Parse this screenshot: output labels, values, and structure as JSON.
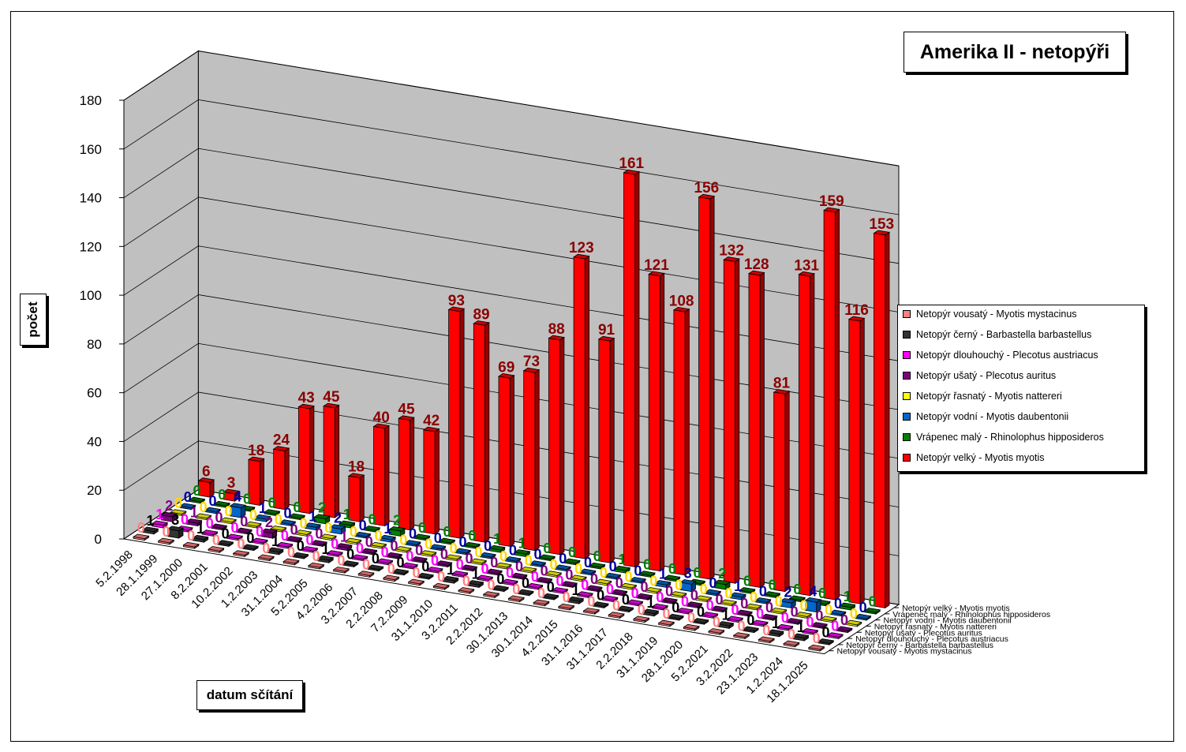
{
  "title": "Amerika II - netopýři",
  "chart_data": {
    "type": "bar",
    "title": "Amerika II - netopýři",
    "xlabel": "datum sčítání",
    "ylabel": "počet",
    "ylim": [
      0,
      180
    ],
    "yticks": [
      "0",
      "20",
      "40",
      "60",
      "80",
      "100",
      "120",
      "140",
      "160",
      "180"
    ],
    "grid": true,
    "legend_position": "right",
    "categories": [
      "5.2.1998",
      "28.1.1999",
      "27.1.2000",
      "8.2.2001",
      "10.2.2002",
      "1.2.2003",
      "31.1.2004",
      "5.2.2005",
      "4.2.2006",
      "3.2.2007",
      "2.2.2008",
      "7.2.2009",
      "31.1.2010",
      "3.2.2011",
      "2.2.2012",
      "30.1.2013",
      "30.1.2014",
      "4.2.2015",
      "31.1.2016",
      "31.1.2017",
      "2.2.2018",
      "31.1.2019",
      "28.1.2020",
      "5.2.2021",
      "3.2.2022",
      "23.1.2023",
      "1.2.2024",
      "18.1.2025"
    ],
    "series": [
      {
        "name": "Netopýr vousatý - Myotis mystacinus",
        "color": "#FF8080",
        "values": [
          0,
          0,
          0,
          0,
          0,
          0,
          0,
          0,
          0,
          0,
          0,
          0,
          0,
          0,
          0,
          0,
          0,
          0,
          0,
          0,
          0,
          0,
          0,
          0,
          0,
          0,
          0,
          0
        ]
      },
      {
        "name": "Netopýr černý - Barbastella barbastellus",
        "color": "#333333",
        "values": [
          1,
          3,
          1,
          0,
          0,
          1,
          0,
          1,
          0,
          0,
          0,
          0,
          1,
          1,
          0,
          0,
          0,
          1,
          0,
          0,
          1,
          0,
          0,
          1,
          0,
          1,
          1,
          0
        ]
      },
      {
        "name": "Netopýr dlouhouchý - Plecotus austriacus",
        "color": "#FF00FF",
        "values": [
          1,
          0,
          0,
          0,
          0,
          0,
          0,
          0,
          0,
          0,
          0,
          0,
          0,
          0,
          0,
          0,
          0,
          0,
          0,
          0,
          0,
          0,
          0,
          0,
          0,
          0,
          0,
          0
        ]
      },
      {
        "name": "Netopýr ušatý - Plecotus auritus",
        "color": "#800080",
        "values": [
          2,
          1,
          0,
          0,
          2,
          0,
          0,
          1,
          0,
          0,
          0,
          0,
          0,
          0,
          0,
          0,
          0,
          0,
          0,
          0,
          0,
          0,
          0,
          0,
          0,
          0,
          0,
          0
        ]
      },
      {
        "name": "Netopýr řasnatý - Myotis nattereri",
        "color": "#FFFF00",
        "values": [
          0,
          0,
          0,
          0,
          0,
          0,
          0,
          0,
          0,
          0,
          0,
          0,
          0,
          0,
          0,
          0,
          0,
          0,
          0,
          0,
          0,
          0,
          0,
          0,
          0,
          0,
          0,
          0
        ]
      },
      {
        "name": "Netopýr vodní - Myotis daubentonii",
        "color": "#0066CC",
        "values": [
          0,
          0,
          4,
          1,
          0,
          1,
          2,
          0,
          1,
          0,
          0,
          0,
          0,
          0,
          0,
          0,
          0,
          0,
          0,
          1,
          3,
          0,
          1,
          0,
          2,
          4,
          0,
          0
        ]
      },
      {
        "name": "Vrápenec malý - Rhinolophus hipposideros",
        "color": "#008000",
        "values": [
          0,
          0,
          0,
          0,
          0,
          2,
          1,
          0,
          2,
          0,
          0,
          0,
          1,
          1,
          0,
          0,
          0,
          1,
          0,
          0,
          0,
          2,
          0,
          0,
          0,
          0,
          1,
          0
        ]
      },
      {
        "name": "Netopýr velký - Myotis myotis",
        "color": "#FF0000",
        "values": [
          6,
          3,
          18,
          24,
          43,
          45,
          18,
          40,
          45,
          42,
          93,
          89,
          69,
          73,
          88,
          123,
          91,
          161,
          121,
          108,
          156,
          132,
          128,
          81,
          131,
          159,
          116,
          153
        ]
      }
    ],
    "label_colors": [
      "#FF8080",
      "#000000",
      "#FF00FF",
      "#800080",
      "#FFD800",
      "#0000A0",
      "#008000",
      "#8B0000"
    ]
  }
}
